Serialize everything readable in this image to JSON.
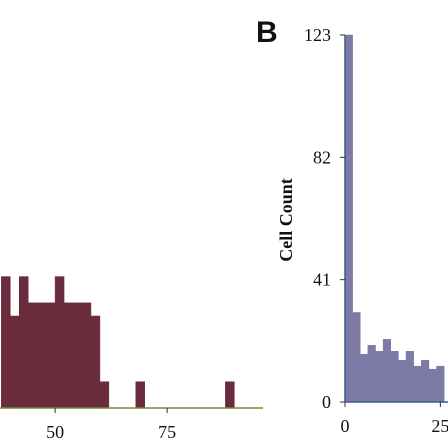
{
  "chart_data": [
    {
      "type": "histogram",
      "bins": [
        38,
        40,
        42,
        44,
        46,
        48,
        50,
        52,
        54,
        56,
        58,
        60,
        62,
        64,
        66,
        68,
        70,
        72,
        74,
        76,
        78,
        80,
        82,
        84,
        86,
        88,
        90
      ],
      "values": [
        5,
        3.5,
        5,
        4,
        4,
        4,
        5,
        4,
        4,
        4,
        3.5,
        1,
        0,
        0,
        0,
        1,
        0,
        0,
        0,
        0,
        0,
        0,
        0,
        0,
        0,
        1
      ],
      "color": "#6a2c3c",
      "xlim": [
        37.7,
        96.4
      ],
      "xticks": [
        50,
        75
      ],
      "ylim": [
        0,
        14
      ]
    },
    {
      "type": "histogram",
      "panel_label": "B",
      "y_label": "Cell Count",
      "bins": [
        0,
        2,
        4,
        6,
        8,
        10,
        12,
        14,
        16,
        18,
        20,
        22,
        24,
        26
      ],
      "values": [
        123,
        30,
        16,
        19,
        17,
        21,
        17,
        14,
        17,
        12,
        14,
        11,
        12
      ],
      "color": "#7d7aa6",
      "xlim": [
        0,
        27
      ],
      "xticks": [
        0,
        25
      ],
      "ylim": [
        0,
        123
      ],
      "yticks": [
        0,
        41,
        82,
        123
      ]
    }
  ]
}
